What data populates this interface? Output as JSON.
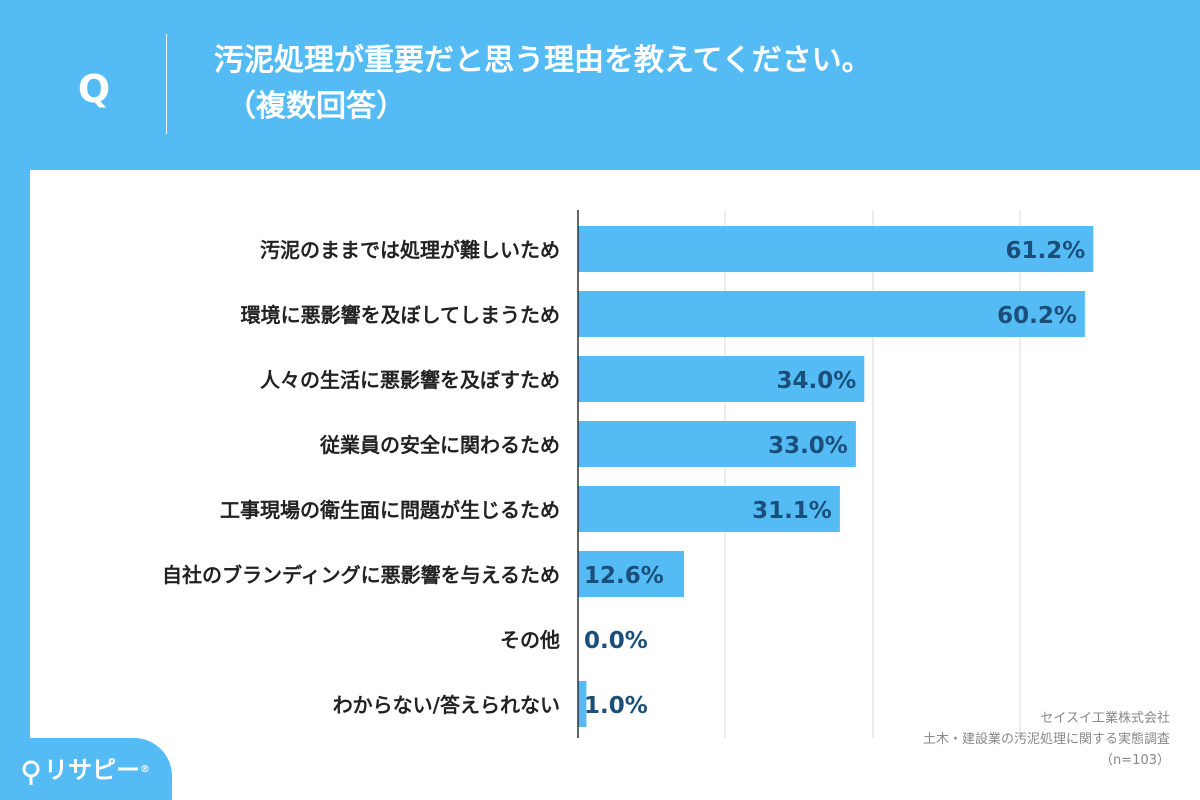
{
  "header": {
    "q_label": "Q",
    "question_line1": "汚泥処理が重要だと思う理由を教えてください。",
    "question_line2": "（複数回答）"
  },
  "chart_data": {
    "type": "bar",
    "orientation": "horizontal",
    "categories": [
      "汚泥のままでは処理が難しいため",
      "環境に悪影響を及ぼしてしまうため",
      "人々の生活に悪影響を及ぼすため",
      "従業員の安全に関わるため",
      "工事現場の衛生面に問題が生じるため",
      "自社のブランディングに悪影響を与えるため",
      "その他",
      "わからない/答えられない"
    ],
    "values": [
      61.2,
      60.2,
      34.0,
      33.0,
      31.1,
      12.6,
      0.0,
      1.0
    ],
    "value_labels": [
      "61.2%",
      "60.2%",
      "34.0%",
      "33.0%",
      "31.1%",
      "12.6%",
      "0.0%",
      "1.0%"
    ],
    "xlim": [
      0,
      70
    ],
    "grid": true,
    "bar_color": "#54bbf5",
    "label_color": "#1b4f7a"
  },
  "credit": {
    "company": "セイスイ工業株式会社",
    "survey": "土木・建設業の汚泥処理に関する実態調査",
    "sample": "（n=103）"
  },
  "logo": {
    "text": "リサピー",
    "suffix": "®"
  },
  "colors": {
    "background": "#54bbf5",
    "panel": "#ffffff",
    "text_dark": "#222222"
  }
}
